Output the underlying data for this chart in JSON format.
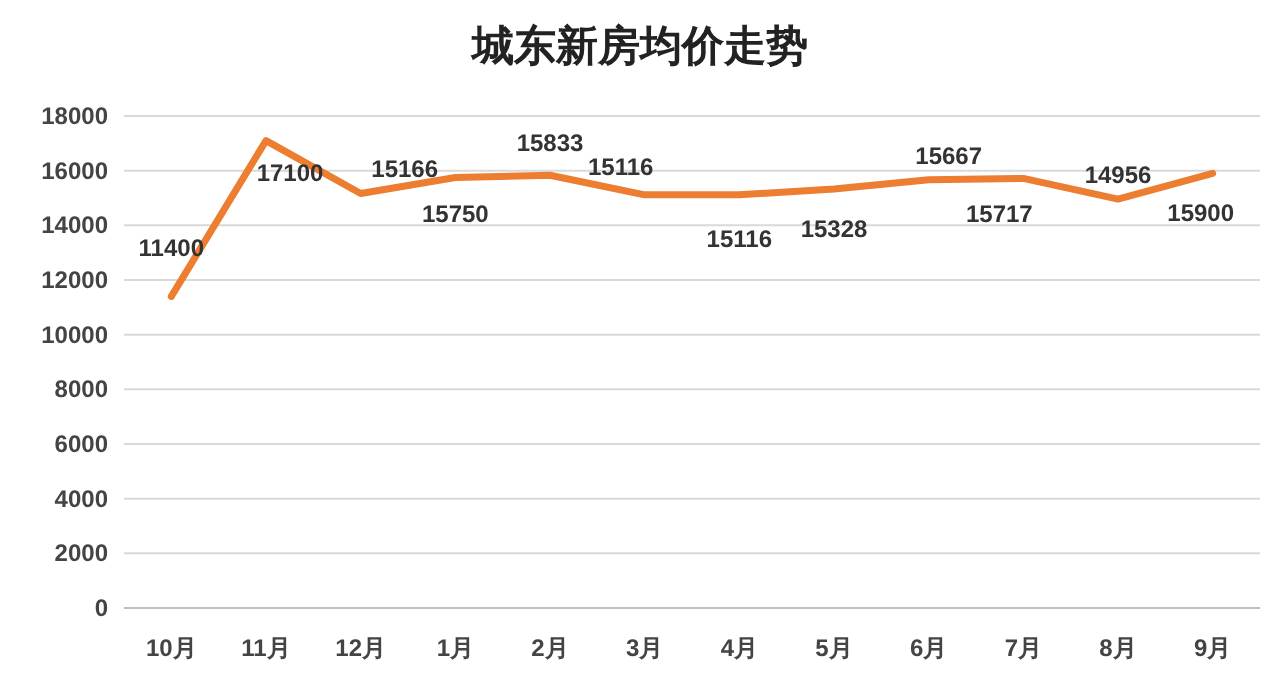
{
  "chart_data": {
    "type": "line",
    "title": "城东新房均价走势",
    "categories": [
      "10月",
      "11月",
      "12月",
      "1月",
      "2月",
      "3月",
      "4月",
      "5月",
      "6月",
      "7月",
      "8月",
      "9月"
    ],
    "series": [
      {
        "color": "#ed7d31",
        "values": [
          11400,
          17100,
          15166,
          15750,
          15833,
          15116,
          15116,
          15328,
          15667,
          15717,
          14956,
          15900
        ]
      }
    ],
    "ylim": [
      0,
      18000
    ],
    "yticks": [
      0,
      2000,
      4000,
      6000,
      8000,
      10000,
      12000,
      14000,
      16000,
      18000
    ],
    "grid": "y",
    "data_labels": true,
    "marker": "none",
    "line_style": "solid"
  }
}
